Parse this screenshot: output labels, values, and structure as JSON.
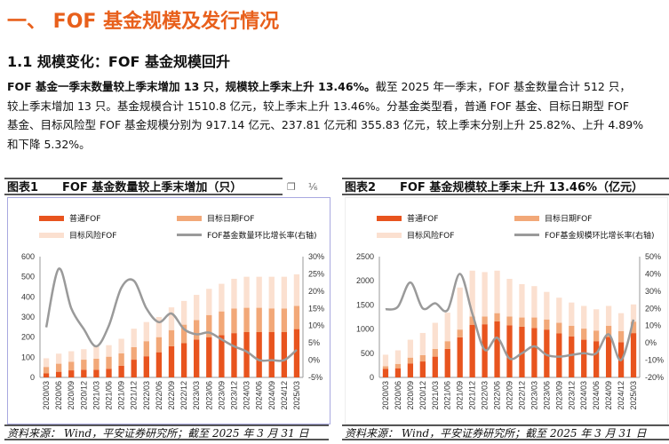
{
  "heading": "一、 FOF 基金规模及发行情况",
  "subheading": "1.1 规模变化：FOF 基金规模回升",
  "paragraph": {
    "bold": "FOF 基金一季末数量较上季末增加 13 只，规模较上季末上升 13.46%。",
    "line1_rest": "截至 2025 年一季末，FOF 基金数量合计 512 只，",
    "line2": "较上季末增加 13 只。基金规模合计 1510.8 亿元，较上季末上升 13.46%。分基金类型看，普通 FOF 基金、目标日期型 FOF",
    "line3": "基金、目标风险型 FOF 基金规模分别为 917.14 亿元、237.81 亿元和 355.83 亿元，较上季末分别上升 25.82%、上升 4.89%",
    "line4": "和下降 5.32%。"
  },
  "colors": {
    "regular": "#e8541e",
    "target_date": "#f2a878",
    "target_risk": "#fbe0d0",
    "growth_line": "#9a9a9a",
    "heading": "#e8601c"
  },
  "toolbar": {
    "icons": [
      "copy-icon",
      "translate-icon"
    ],
    "translate_label": "⅟₆"
  },
  "chart_data": [
    {
      "type": "bar",
      "stacked": true,
      "label_num": "图表1",
      "title": "FOF 基金数量较上季末增加（只）",
      "source": "资料来源： Wind，平安证券研究所；截至 2025 年 3 月 31 日",
      "categories": [
        "2020/03",
        "2020/06",
        "2020/09",
        "2020/12",
        "2021/03",
        "2021/06",
        "2021/09",
        "2021/12",
        "2022/03",
        "2022/06",
        "2022/09",
        "2022/12",
        "2023/03",
        "2023/06",
        "2023/09",
        "2023/12",
        "2024/03",
        "2024/06",
        "2024/09",
        "2024/12",
        "2025/03"
      ],
      "series": [
        {
          "name": "普通FOF",
          "values": [
            20,
            28,
            35,
            38,
            38,
            43,
            58,
            88,
            105,
            125,
            155,
            170,
            188,
            200,
            210,
            220,
            225,
            225,
            225,
            225,
            240
          ]
        },
        {
          "name": "目标日期FOF",
          "values": [
            32,
            40,
            43,
            50,
            55,
            60,
            62,
            62,
            75,
            75,
            80,
            92,
            97,
            110,
            118,
            122,
            121,
            121,
            118,
            117,
            115
          ]
        },
        {
          "name": "目标风险FOF",
          "values": [
            43,
            50,
            52,
            52,
            62,
            57,
            72,
            92,
            95,
            100,
            113,
            118,
            125,
            130,
            137,
            148,
            154,
            154,
            157,
            158,
            157
          ]
        }
      ],
      "line": {
        "name": "FOF基金数量环比增长率(右轴)",
        "values": [
          9.5,
          26.5,
          15,
          9,
          4,
          10,
          21,
          23,
          15,
          11,
          13.5,
          9,
          7.5,
          8,
          6,
          4,
          2.5,
          0,
          0,
          0,
          3
        ]
      },
      "ylim": [
        0,
        600
      ],
      "yticks": [
        "0",
        "100",
        "200",
        "300",
        "400",
        "500",
        "600"
      ],
      "y2lim": [
        -5,
        30
      ],
      "y2ticks": [
        "-5%",
        "0%",
        "5%",
        "10%",
        "15%",
        "20%",
        "25%",
        "30%"
      ],
      "legend": "top"
    },
    {
      "type": "bar",
      "stacked": true,
      "label_num": "图表2",
      "title": "FOF 基金规模较上季末上升 13.46%（亿元）",
      "source": "资料来源： Wind，平安证券研究所；截至 2025 年 3 月 31 日",
      "categories": [
        "2020/03",
        "2020/06",
        "2020/09",
        "2020/12",
        "2021/03",
        "2021/06",
        "2021/09",
        "2021/12",
        "2022/03",
        "2022/06",
        "2022/09",
        "2022/12",
        "2023/03",
        "2023/06",
        "2023/09",
        "2023/12",
        "2024/03",
        "2024/06",
        "2024/09",
        "2024/12",
        "2025/03"
      ],
      "series": [
        {
          "name": "普通FOF",
          "values": [
            180,
            190,
            290,
            330,
            430,
            590,
            830,
            1090,
            1100,
            1160,
            1080,
            1050,
            1020,
            990,
            910,
            850,
            780,
            750,
            840,
            730,
            917
          ]
        },
        {
          "name": "目标日期FOF",
          "values": [
            50,
            90,
            120,
            130,
            160,
            160,
            160,
            170,
            160,
            170,
            180,
            190,
            220,
            210,
            220,
            220,
            230,
            220,
            230,
            230,
            238
          ]
        },
        {
          "name": "目标风险FOF",
          "values": [
            240,
            280,
            370,
            460,
            540,
            590,
            870,
            950,
            920,
            880,
            780,
            690,
            650,
            570,
            520,
            480,
            470,
            440,
            410,
            370,
            356
          ]
        }
      ],
      "line": {
        "name": "FOF基金规模环比增长率(右轴)",
        "values": [
          19.5,
          21,
          35,
          20,
          23,
          19,
          40,
          17,
          -4,
          3,
          -9,
          -6,
          -2,
          -7,
          -8,
          -7,
          -6,
          -6,
          5,
          -10,
          13.5
        ]
      },
      "ylim": [
        0,
        2500
      ],
      "yticks": [
        "0",
        "500",
        "1000",
        "1500",
        "2000",
        "2500"
      ],
      "y2lim": [
        -20,
        50
      ],
      "y2ticks": [
        "-20%",
        "-10%",
        "0%",
        "10%",
        "20%",
        "30%",
        "40%",
        "50%"
      ],
      "legend": "top"
    }
  ]
}
